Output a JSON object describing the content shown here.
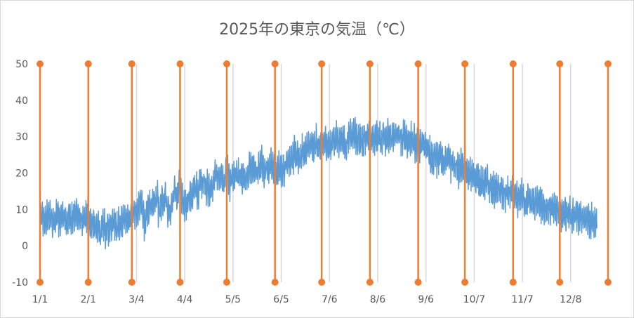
{
  "chart_data": {
    "type": "line",
    "title": "2025年の東京の気温（℃）",
    "xlabel": "",
    "ylabel": "",
    "ylim": [
      -10,
      50
    ],
    "y_ticks": [
      "-10",
      "0",
      "10",
      "20",
      "30",
      "40",
      "50"
    ],
    "x_tick_labels": [
      "1/1",
      "2/1",
      "3/4",
      "4/4",
      "5/5",
      "6/5",
      "7/6",
      "8/6",
      "9/6",
      "10/7",
      "11/7",
      "12/8"
    ],
    "x_tick_days": [
      0,
      31,
      62,
      93,
      124,
      155,
      186,
      217,
      248,
      279,
      310,
      341
    ],
    "x_range_days": [
      0,
      365
    ],
    "grid": "vertical",
    "series": [
      {
        "type": "line",
        "color": "#5b9bd5",
        "points_per_day": 8,
        "x_unit": "days",
        "daily_mean": [
          7.5,
          7.8,
          6.9,
          7.2,
          7.6,
          8.3,
          8.7,
          8.4,
          6.1,
          6.7,
          8.0,
          8.7,
          6.7,
          7.5,
          8.3,
          7.8,
          6.5,
          6.5,
          7.9,
          7.6,
          7.9,
          7.6,
          8.1,
          9.2,
          8.7,
          7.1,
          7.2,
          7.0,
          6.7,
          7.7,
          7.4,
          5.8,
          6.1,
          6.8,
          6.5,
          5.5,
          4.4,
          4.5,
          3.9,
          4.0,
          5.0,
          5.5,
          3.8,
          5.4,
          5.0,
          6.6,
          6.1,
          7.2,
          5.7,
          4.7,
          5.9,
          5.5,
          6.8,
          7.0,
          6.7,
          7.2,
          7.7,
          7.7,
          7.5,
          8.3,
          9.1,
          9.7,
          9.6,
          10.6,
          11.9,
          12.1,
          8.1,
          5.8,
          8.4,
          9.6,
          11.4,
          11.0,
          12.0,
          11.4,
          11.3,
          13.0,
          9.3,
          9.0,
          12.5,
          12.2,
          13.7,
          11.5,
          8.9,
          9.5,
          10.8,
          13.0,
          14.6,
          14.2,
          13.7,
          17.8,
          16.1,
          12.6,
          11.3,
          11.6,
          11.5,
          13.2,
          13.7,
          14.5,
          15.5,
          16.2,
          16.5,
          13.2,
          17.0,
          17.8,
          17.3,
          17.7,
          15.4,
          16.2,
          15.8,
          16.0,
          16.6,
          17.0,
          18.6,
          19.4,
          18.4,
          18.2,
          19.3,
          17.1,
          17.5,
          20.7,
          21.0,
          18.2,
          17.3,
          18.9,
          19.1,
          19.1,
          20.1,
          19.3,
          18.8,
          18.9,
          18.9,
          19.1,
          17.9,
          19.3,
          20.8,
          21.0,
          21.5,
          21.1,
          20.8,
          19.9,
          21.0,
          21.2,
          23.3,
          21.7,
          20.7,
          21.2,
          21.1,
          21.5,
          22.7,
          21.6,
          21.2,
          19.7,
          20.1,
          21.4,
          21.4,
          20.5,
          21.5,
          21.2,
          23.4,
          24.1,
          22.8,
          23.4,
          23.6,
          25.4,
          24.5,
          25.1,
          24.5,
          24.2,
          25.9,
          26.0,
          25.8,
          26.9,
          27.0,
          27.8,
          27.3,
          26.4,
          27.4,
          28.7,
          27.7,
          26.9,
          27.8,
          27.7,
          28.0,
          29.0,
          27.8,
          27.3,
          27.7,
          28.0,
          29.7,
          28.7,
          29.6,
          29.4,
          28.8,
          29.7,
          29.7,
          28.3,
          27.3,
          28.3,
          29.7,
          30.3,
          29.6,
          30.6,
          30.4,
          29.5,
          29.9,
          29.3,
          29.0,
          29.0,
          30.5,
          30.0,
          29.5,
          29.3,
          29.2,
          29.0,
          29.5,
          29.5,
          30.3,
          29.7,
          29.9,
          28.7,
          30.8,
          30.3,
          29.5,
          30.2,
          28.9,
          29.5,
          29.7,
          30.1,
          30.3,
          31.0,
          30.4,
          30.0,
          28.6,
          29.6,
          30.7,
          29.4,
          28.8,
          28.7,
          29.2,
          28.6,
          28.9,
          27.6,
          27.3,
          28.4,
          27.2,
          28.2,
          27.5,
          26.8,
          26.7,
          27.3,
          25.7,
          24.1,
          23.8,
          24.8,
          24.7,
          23.3,
          23.8,
          24.3,
          23.9,
          22.8,
          24.0,
          24.2,
          24.3,
          22.9,
          22.1,
          22.6,
          21.8,
          22.4,
          21.1,
          20.8,
          22.4,
          21.7,
          20.3,
          20.2,
          20.1,
          19.1,
          19.4,
          19.6,
          18.9,
          19.1,
          18.7,
          18.4,
          17.6,
          17.8,
          16.6,
          16.7,
          17.4,
          17.4,
          16.0,
          16.3,
          15.8,
          15.5,
          15.1,
          15.8,
          15.5,
          15.0,
          14.8,
          14.3,
          14.4,
          13.8,
          15.0,
          14.2,
          14.4,
          14.3,
          13.2,
          13.1,
          13.3,
          12.8,
          13.7,
          13.9,
          13.6,
          12.2,
          12.2,
          12.5,
          12.6,
          12.1,
          11.4,
          11.9,
          11.8,
          11.4,
          11.5,
          11.6,
          10.9,
          10.4,
          10.4,
          10.0,
          10.3,
          10.4,
          9.8,
          10.1,
          10.2,
          9.6,
          9.9,
          9.7,
          9.1,
          8.9,
          8.8,
          8.7,
          8.2,
          8.6,
          8.7,
          7.9,
          8.1,
          7.8,
          8.1,
          7.9,
          7.8,
          7.7,
          7.7,
          7.4,
          7.4,
          7.5,
          7.3,
          7.2,
          7.0,
          6.9,
          7.1,
          6.9
        ],
        "intraday_swing": 5.2
      }
    ],
    "marker_lines": {
      "color": "#ed7d31",
      "x_days": [
        0,
        31,
        59,
        90,
        120,
        151,
        181,
        212,
        243,
        273,
        304,
        334,
        365
      ],
      "y_range": [
        -10,
        50
      ]
    }
  }
}
